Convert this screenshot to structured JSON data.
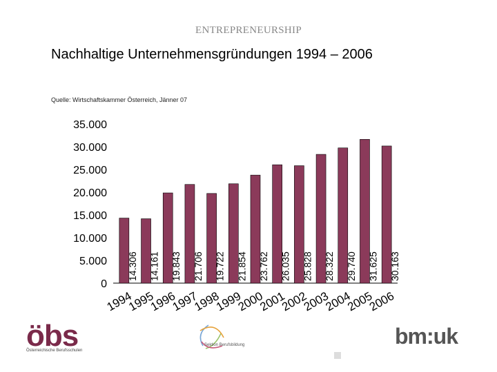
{
  "header": {
    "text": "ENTREPRENEURSHIP"
  },
  "title": "Nachhaltige Unternehmensgründungen 1994 – 2006",
  "source": "Quelle: Wirtschaftskammer Österreich, Jänner 07",
  "colors": {
    "bar": "#8B3A5A",
    "bar_stroke": "#000000",
    "logo_accent": "#7a2a4a"
  },
  "chart_data": {
    "type": "bar",
    "categories": [
      "1994",
      "1995",
      "1996",
      "1997",
      "1998",
      "1999",
      "2000",
      "2001",
      "2002",
      "2003",
      "2004",
      "2005",
      "2006"
    ],
    "values": [
      14306,
      14161,
      19843,
      21706,
      19722,
      21854,
      23762,
      26035,
      25828,
      28322,
      29740,
      31625,
      30163
    ],
    "value_labels": [
      "14.306",
      "14.161",
      "19.843",
      "21.706",
      "19.722",
      "21.854",
      "23.762",
      "26.035",
      "25.828",
      "28.322",
      "29.740",
      "31.625",
      "30.163"
    ],
    "ylim": [
      0,
      35000
    ],
    "yticks": [
      0,
      5000,
      10000,
      15000,
      20000,
      25000,
      30000,
      35000
    ],
    "ytick_labels": [
      "0",
      "5.000",
      "10.000",
      "15.000",
      "20.000",
      "25.000",
      "30.000",
      "35.000"
    ],
    "grid": false,
    "legend": "none",
    "title": "",
    "xlabel": "",
    "ylabel": ""
  },
  "logos": {
    "obs": {
      "mark": "öbs",
      "subtitle": "Österreichische Berufsschulen"
    },
    "sektion": {
      "text": "Sektion Berufsbildung"
    },
    "bmuk": {
      "main": "bm:uk"
    }
  }
}
